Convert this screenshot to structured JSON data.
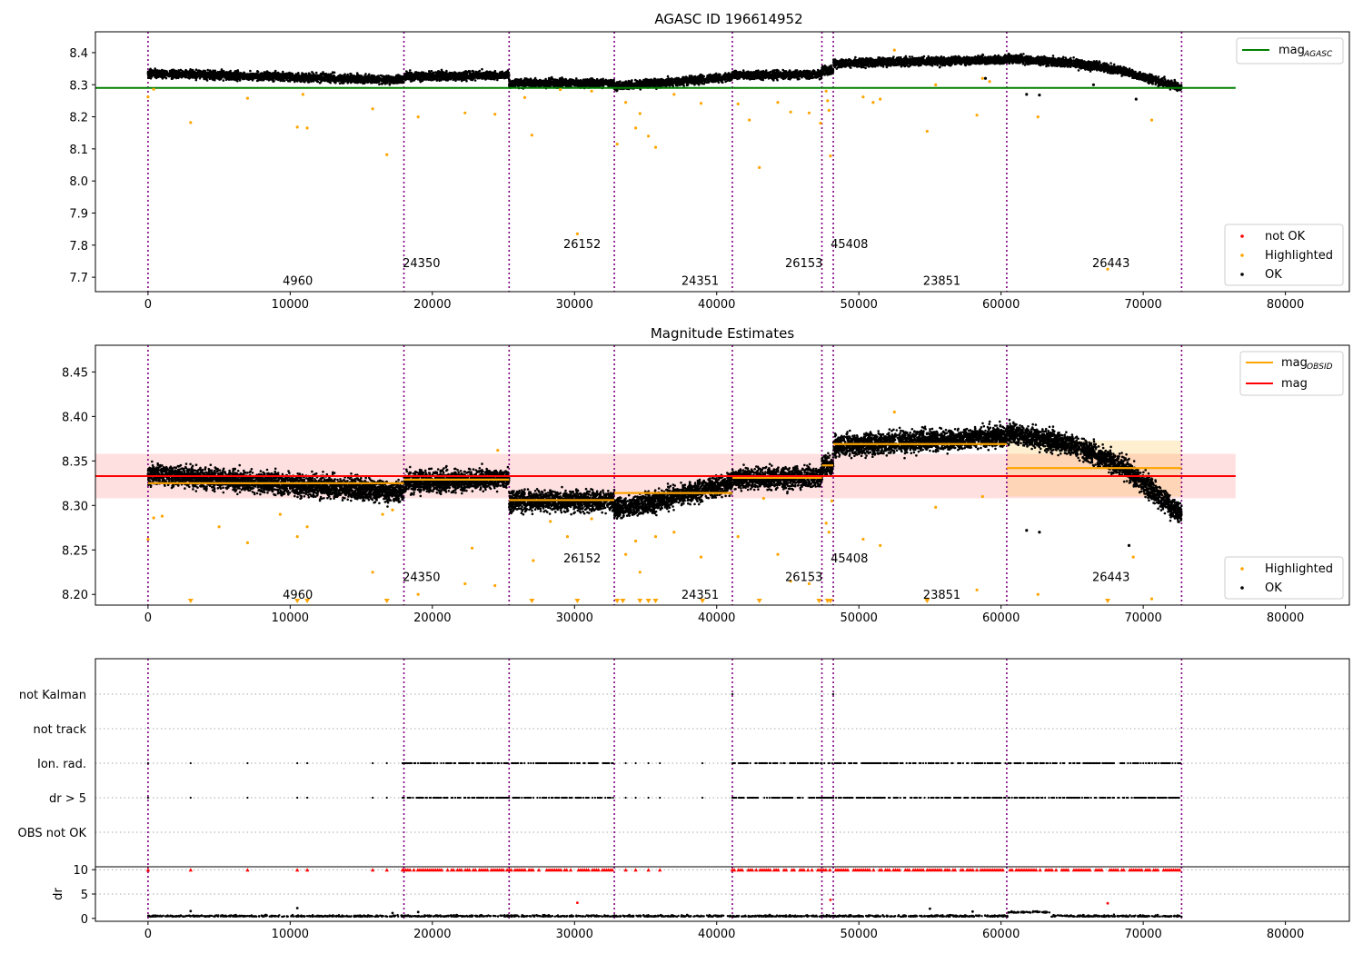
{
  "chart_data": [
    {
      "type": "scatter",
      "title": "AGASC ID 196614952",
      "xlabel": "",
      "ylabel": "",
      "xlim": [
        -3700,
        84500
      ],
      "ylim": [
        7.655,
        8.465
      ],
      "xticks": [
        "0",
        "10000",
        "20000",
        "30000",
        "40000",
        "50000",
        "60000",
        "70000",
        "80000"
      ],
      "yticks": [
        "7.7",
        "7.8",
        "7.9",
        "8.0",
        "8.1",
        "8.2",
        "8.3",
        "8.4"
      ],
      "obsid_boundaries": [
        0,
        18000,
        25400,
        32800,
        41100,
        47400,
        48200,
        60400,
        72700
      ],
      "obsid_labels": [
        {
          "text": "4960",
          "x": 9000,
          "y": 7.69
        },
        {
          "text": "24350",
          "x": 17700,
          "y": 7.746
        },
        {
          "text": "26152",
          "x": 29000,
          "y": 7.805
        },
        {
          "text": "24351",
          "x": 37300,
          "y": 7.69
        },
        {
          "text": "26153",
          "x": 44600,
          "y": 7.746
        },
        {
          "text": "45408",
          "x": 47800,
          "y": 7.805
        },
        {
          "text": "23851",
          "x": 54300,
          "y": 7.69
        },
        {
          "text": "26443",
          "x": 66200,
          "y": 7.746
        }
      ],
      "reference_lines": [
        {
          "name": "mag_AGASC",
          "y": 8.29,
          "x_range": [
            -3700,
            76500
          ],
          "color": "#008000"
        }
      ],
      "trend": [
        {
          "x": [
            0,
            18000
          ],
          "y": [
            8.335,
            8.315
          ]
        },
        {
          "x": [
            18000,
            25400
          ],
          "y": [
            8.326,
            8.33
          ]
        },
        {
          "x": [
            25400,
            32800
          ],
          "y": [
            8.305,
            8.305
          ]
        },
        {
          "x": [
            32800,
            41100
          ],
          "y": [
            8.295,
            8.325
          ]
        },
        {
          "x": [
            41100,
            47400
          ],
          "y": [
            8.33,
            8.332
          ]
        },
        {
          "x": [
            47400,
            48200
          ],
          "y": [
            8.345,
            8.345
          ]
        },
        {
          "x": [
            48200,
            60400
          ],
          "y": [
            8.367,
            8.378
          ]
        },
        {
          "x": [
            60400,
            65000,
            68500,
            72700
          ],
          "y": [
            8.382,
            8.368,
            8.345,
            8.29
          ]
        }
      ],
      "spread": 0.022,
      "highlighted_points": [
        [
          0,
          8.262
        ],
        [
          400,
          8.286
        ],
        [
          3000,
          8.182
        ],
        [
          7000,
          8.258
        ],
        [
          10500,
          8.168
        ],
        [
          11200,
          8.165
        ],
        [
          10900,
          8.27
        ],
        [
          15800,
          8.225
        ],
        [
          16800,
          8.082
        ],
        [
          19000,
          8.2
        ],
        [
          22300,
          8.212
        ],
        [
          24400,
          8.208
        ],
        [
          27000,
          8.143
        ],
        [
          30200,
          7.835
        ],
        [
          26500,
          8.26
        ],
        [
          29000,
          8.285
        ],
        [
          31200,
          8.28
        ],
        [
          33000,
          8.115
        ],
        [
          33600,
          8.245
        ],
        [
          34300,
          8.165
        ],
        [
          34600,
          8.21
        ],
        [
          35200,
          8.14
        ],
        [
          35700,
          8.105
        ],
        [
          37000,
          8.27
        ],
        [
          38900,
          8.242
        ],
        [
          41500,
          8.24
        ],
        [
          42300,
          8.19
        ],
        [
          43000,
          8.042
        ],
        [
          44300,
          8.245
        ],
        [
          45200,
          8.215
        ],
        [
          46500,
          8.212
        ],
        [
          47300,
          8.18
        ],
        [
          47700,
          8.28
        ],
        [
          47800,
          8.25
        ],
        [
          47900,
          8.22
        ],
        [
          48000,
          8.078
        ],
        [
          50300,
          8.262
        ],
        [
          51000,
          8.245
        ],
        [
          51500,
          8.255
        ],
        [
          54800,
          8.155
        ],
        [
          55400,
          8.3
        ],
        [
          58300,
          8.205
        ],
        [
          58700,
          8.32
        ],
        [
          59200,
          8.31
        ],
        [
          62600,
          8.2
        ],
        [
          67500,
          7.725
        ],
        [
          70600,
          8.19
        ],
        [
          52500,
          8.408
        ]
      ],
      "ok_outliers": [
        [
          58900,
          8.32
        ],
        [
          61800,
          8.27
        ],
        [
          62700,
          8.268
        ],
        [
          66500,
          8.3
        ],
        [
          69500,
          8.255
        ]
      ],
      "legend_top": [
        {
          "label": "mag",
          "sub": "AGASC",
          "color": "#008000"
        }
      ],
      "legend_bottom": [
        {
          "label": "not OK",
          "color": "#ff0000"
        },
        {
          "label": "Highlighted",
          "color": "#ffa500"
        },
        {
          "label": "OK",
          "color": "#000000"
        }
      ]
    },
    {
      "type": "scatter",
      "title": "Magnitude Estimates",
      "xlabel": "",
      "ylabel": "",
      "xlim": [
        -3700,
        84500
      ],
      "ylim": [
        8.188,
        8.48
      ],
      "xticks": [
        "0",
        "10000",
        "20000",
        "30000",
        "40000",
        "50000",
        "60000",
        "70000",
        "80000"
      ],
      "yticks": [
        "8.20",
        "8.25",
        "8.30",
        "8.35",
        "8.40",
        "8.45"
      ],
      "obsid_boundaries": [
        0,
        18000,
        25400,
        32800,
        41100,
        47400,
        48200,
        60400,
        72700
      ],
      "obsid_labels": [
        {
          "text": "4960",
          "x": 9000,
          "y": 8.2
        },
        {
          "text": "24350",
          "x": 17700,
          "y": 8.22
        },
        {
          "text": "26152",
          "x": 29000,
          "y": 8.241
        },
        {
          "text": "24351",
          "x": 37300,
          "y": 8.2
        },
        {
          "text": "26153",
          "x": 44600,
          "y": 8.22
        },
        {
          "text": "45408",
          "x": 47800,
          "y": 8.241
        },
        {
          "text": "23851",
          "x": 54300,
          "y": 8.2
        },
        {
          "text": "26443",
          "x": 66200,
          "y": 8.22
        }
      ],
      "mag": {
        "value": 8.333,
        "band": [
          8.308,
          8.358
        ],
        "x_range": [
          -3700,
          76500
        ],
        "color": "#ff0000"
      },
      "mag_obsid": [
        {
          "x": [
            0,
            18000
          ],
          "y": 8.325
        },
        {
          "x": [
            18000,
            25400
          ],
          "y": 8.329
        },
        {
          "x": [
            25400,
            32800
          ],
          "y": 8.306
        },
        {
          "x": [
            32800,
            41100
          ],
          "y": 8.314
        },
        {
          "x": [
            41100,
            47400
          ],
          "y": 8.331
        },
        {
          "x": [
            47400,
            48200
          ],
          "y": 8.345
        },
        {
          "x": [
            48200,
            60400
          ],
          "y": 8.369
        },
        {
          "x": [
            60400,
            72700
          ],
          "y": 8.342,
          "band": [
            8.31,
            8.373
          ]
        }
      ],
      "trend": [
        {
          "x": [
            0,
            18000
          ],
          "y": [
            8.335,
            8.315
          ]
        },
        {
          "x": [
            18000,
            25400
          ],
          "y": [
            8.326,
            8.33
          ]
        },
        {
          "x": [
            25400,
            32800
          ],
          "y": [
            8.305,
            8.305
          ]
        },
        {
          "x": [
            32800,
            41100
          ],
          "y": [
            8.295,
            8.325
          ]
        },
        {
          "x": [
            41100,
            47400
          ],
          "y": [
            8.33,
            8.332
          ]
        },
        {
          "x": [
            47400,
            48200
          ],
          "y": [
            8.345,
            8.345
          ]
        },
        {
          "x": [
            48200,
            60400
          ],
          "y": [
            8.367,
            8.378
          ]
        },
        {
          "x": [
            60400,
            65000,
            68500,
            72700
          ],
          "y": [
            8.382,
            8.368,
            8.345,
            8.29
          ]
        }
      ],
      "spread": 0.02,
      "highlighted_points": [
        [
          0,
          8.262
        ],
        [
          400,
          8.286
        ],
        [
          1000,
          8.288
        ],
        [
          5000,
          8.276
        ],
        [
          7000,
          8.258
        ],
        [
          9300,
          8.29
        ],
        [
          10500,
          8.265
        ],
        [
          11200,
          8.276
        ],
        [
          15800,
          8.225
        ],
        [
          16500,
          8.29
        ],
        [
          17200,
          8.295
        ],
        [
          19000,
          8.2
        ],
        [
          22300,
          8.212
        ],
        [
          22800,
          8.252
        ],
        [
          24400,
          8.21
        ],
        [
          24600,
          8.362
        ],
        [
          27100,
          8.238
        ],
        [
          28300,
          8.282
        ],
        [
          29500,
          8.265
        ],
        [
          31200,
          8.285
        ],
        [
          33600,
          8.245
        ],
        [
          34300,
          8.26
        ],
        [
          34600,
          8.225
        ],
        [
          35700,
          8.265
        ],
        [
          37000,
          8.27
        ],
        [
          38900,
          8.242
        ],
        [
          41500,
          8.265
        ],
        [
          43300,
          8.308
        ],
        [
          44300,
          8.245
        ],
        [
          45200,
          8.215
        ],
        [
          46500,
          8.212
        ],
        [
          47700,
          8.28
        ],
        [
          47900,
          8.27
        ],
        [
          48100,
          8.305
        ],
        [
          50300,
          8.262
        ],
        [
          51500,
          8.255
        ],
        [
          52500,
          8.405
        ],
        [
          55400,
          8.298
        ],
        [
          58300,
          8.205
        ],
        [
          58700,
          8.31
        ],
        [
          62600,
          8.2
        ],
        [
          69300,
          8.242
        ],
        [
          70600,
          8.195
        ]
      ],
      "ok_outliers": [
        [
          61800,
          8.272
        ],
        [
          62700,
          8.27
        ],
        [
          69000,
          8.255
        ]
      ],
      "below_axis_markers": [
        3000,
        10500,
        11200,
        16800,
        27000,
        30200,
        33000,
        33400,
        34600,
        35200,
        35700,
        39000,
        43000,
        47200,
        47800,
        48000,
        54800,
        67500
      ],
      "legend_top": [
        {
          "label": "mag",
          "sub": "OBSID",
          "color": "#ffa500"
        },
        {
          "label": "mag",
          "sub": "",
          "color": "#ff0000"
        }
      ],
      "legend_bottom": [
        {
          "label": "Highlighted",
          "color": "#ffa500"
        },
        {
          "label": "OK",
          "color": "#000000"
        }
      ]
    },
    {
      "type": "scatter",
      "title": "",
      "xlabel": "",
      "ylabel": "",
      "xlim": [
        -3700,
        84500
      ],
      "flag_rows": [
        "not Kalman",
        "not track",
        "Ion. rad.",
        "dr > 5",
        "OBS not OK"
      ],
      "flag_ranges": {
        "not Kalman": [],
        "not track": [],
        "Ion. rad.": [
          [
            18000,
            25400
          ],
          [
            25400,
            32800
          ],
          [
            41100,
            47400
          ],
          [
            47400,
            60400
          ],
          [
            60500,
            72700
          ]
        ],
        "dr > 5": [
          [
            18000,
            25400
          ],
          [
            25400,
            32800
          ],
          [
            41100,
            47400
          ],
          [
            47400,
            60400
          ],
          [
            60500,
            72700
          ]
        ],
        "OBS not OK": []
      },
      "flag_points": {
        "not Kalman": [
          41100,
          48200
        ],
        "Ion. rad.": [
          0,
          3000,
          7000,
          10500,
          11200,
          15800,
          16800,
          33600,
          34300,
          35200,
          36000,
          39000,
          17900
        ],
        "dr > 5": [
          0,
          3000,
          7000,
          10500,
          11200,
          15800,
          16800,
          33600,
          34300,
          35200,
          36000,
          39000,
          17900
        ]
      },
      "obsid_boundaries": [
        0,
        18000,
        25400,
        32800,
        41100,
        47400,
        48200,
        60400,
        72700
      ]
    },
    {
      "type": "scatter",
      "title": "",
      "xlabel": "",
      "ylabel": "dr",
      "xlim": [
        -3700,
        84500
      ],
      "ylim": [
        -0.6,
        10.6
      ],
      "xticks": [
        "0",
        "10000",
        "20000",
        "30000",
        "40000",
        "50000",
        "60000",
        "70000",
        "80000"
      ],
      "yticks": [
        "0",
        "5",
        "10"
      ],
      "obsid_boundaries": [
        0,
        18000,
        25400,
        32800,
        41100,
        47400,
        48200,
        60400,
        72700
      ],
      "dr_typical": 0.35,
      "clipped_value": 10,
      "clipped_ranges": [
        [
          18000,
          25400
        ],
        [
          25400,
          32800
        ],
        [
          41100,
          47400
        ],
        [
          47400,
          60400
        ],
        [
          60500,
          72700
        ]
      ],
      "clipped_points": [
        0,
        3000,
        7000,
        10500,
        11200,
        15800,
        16800,
        33600,
        34300,
        35200,
        36000,
        17900
      ],
      "outliers_ok": [
        [
          3000,
          1.5
        ],
        [
          10500,
          2.1
        ],
        [
          17200,
          1.1
        ],
        [
          19000,
          1.3
        ],
        [
          55000,
          2.0
        ],
        [
          58000,
          1.4
        ]
      ],
      "outliers_red": [
        [
          30200,
          3.2
        ],
        [
          67500,
          3.1
        ],
        [
          48000,
          3.8
        ]
      ]
    }
  ]
}
